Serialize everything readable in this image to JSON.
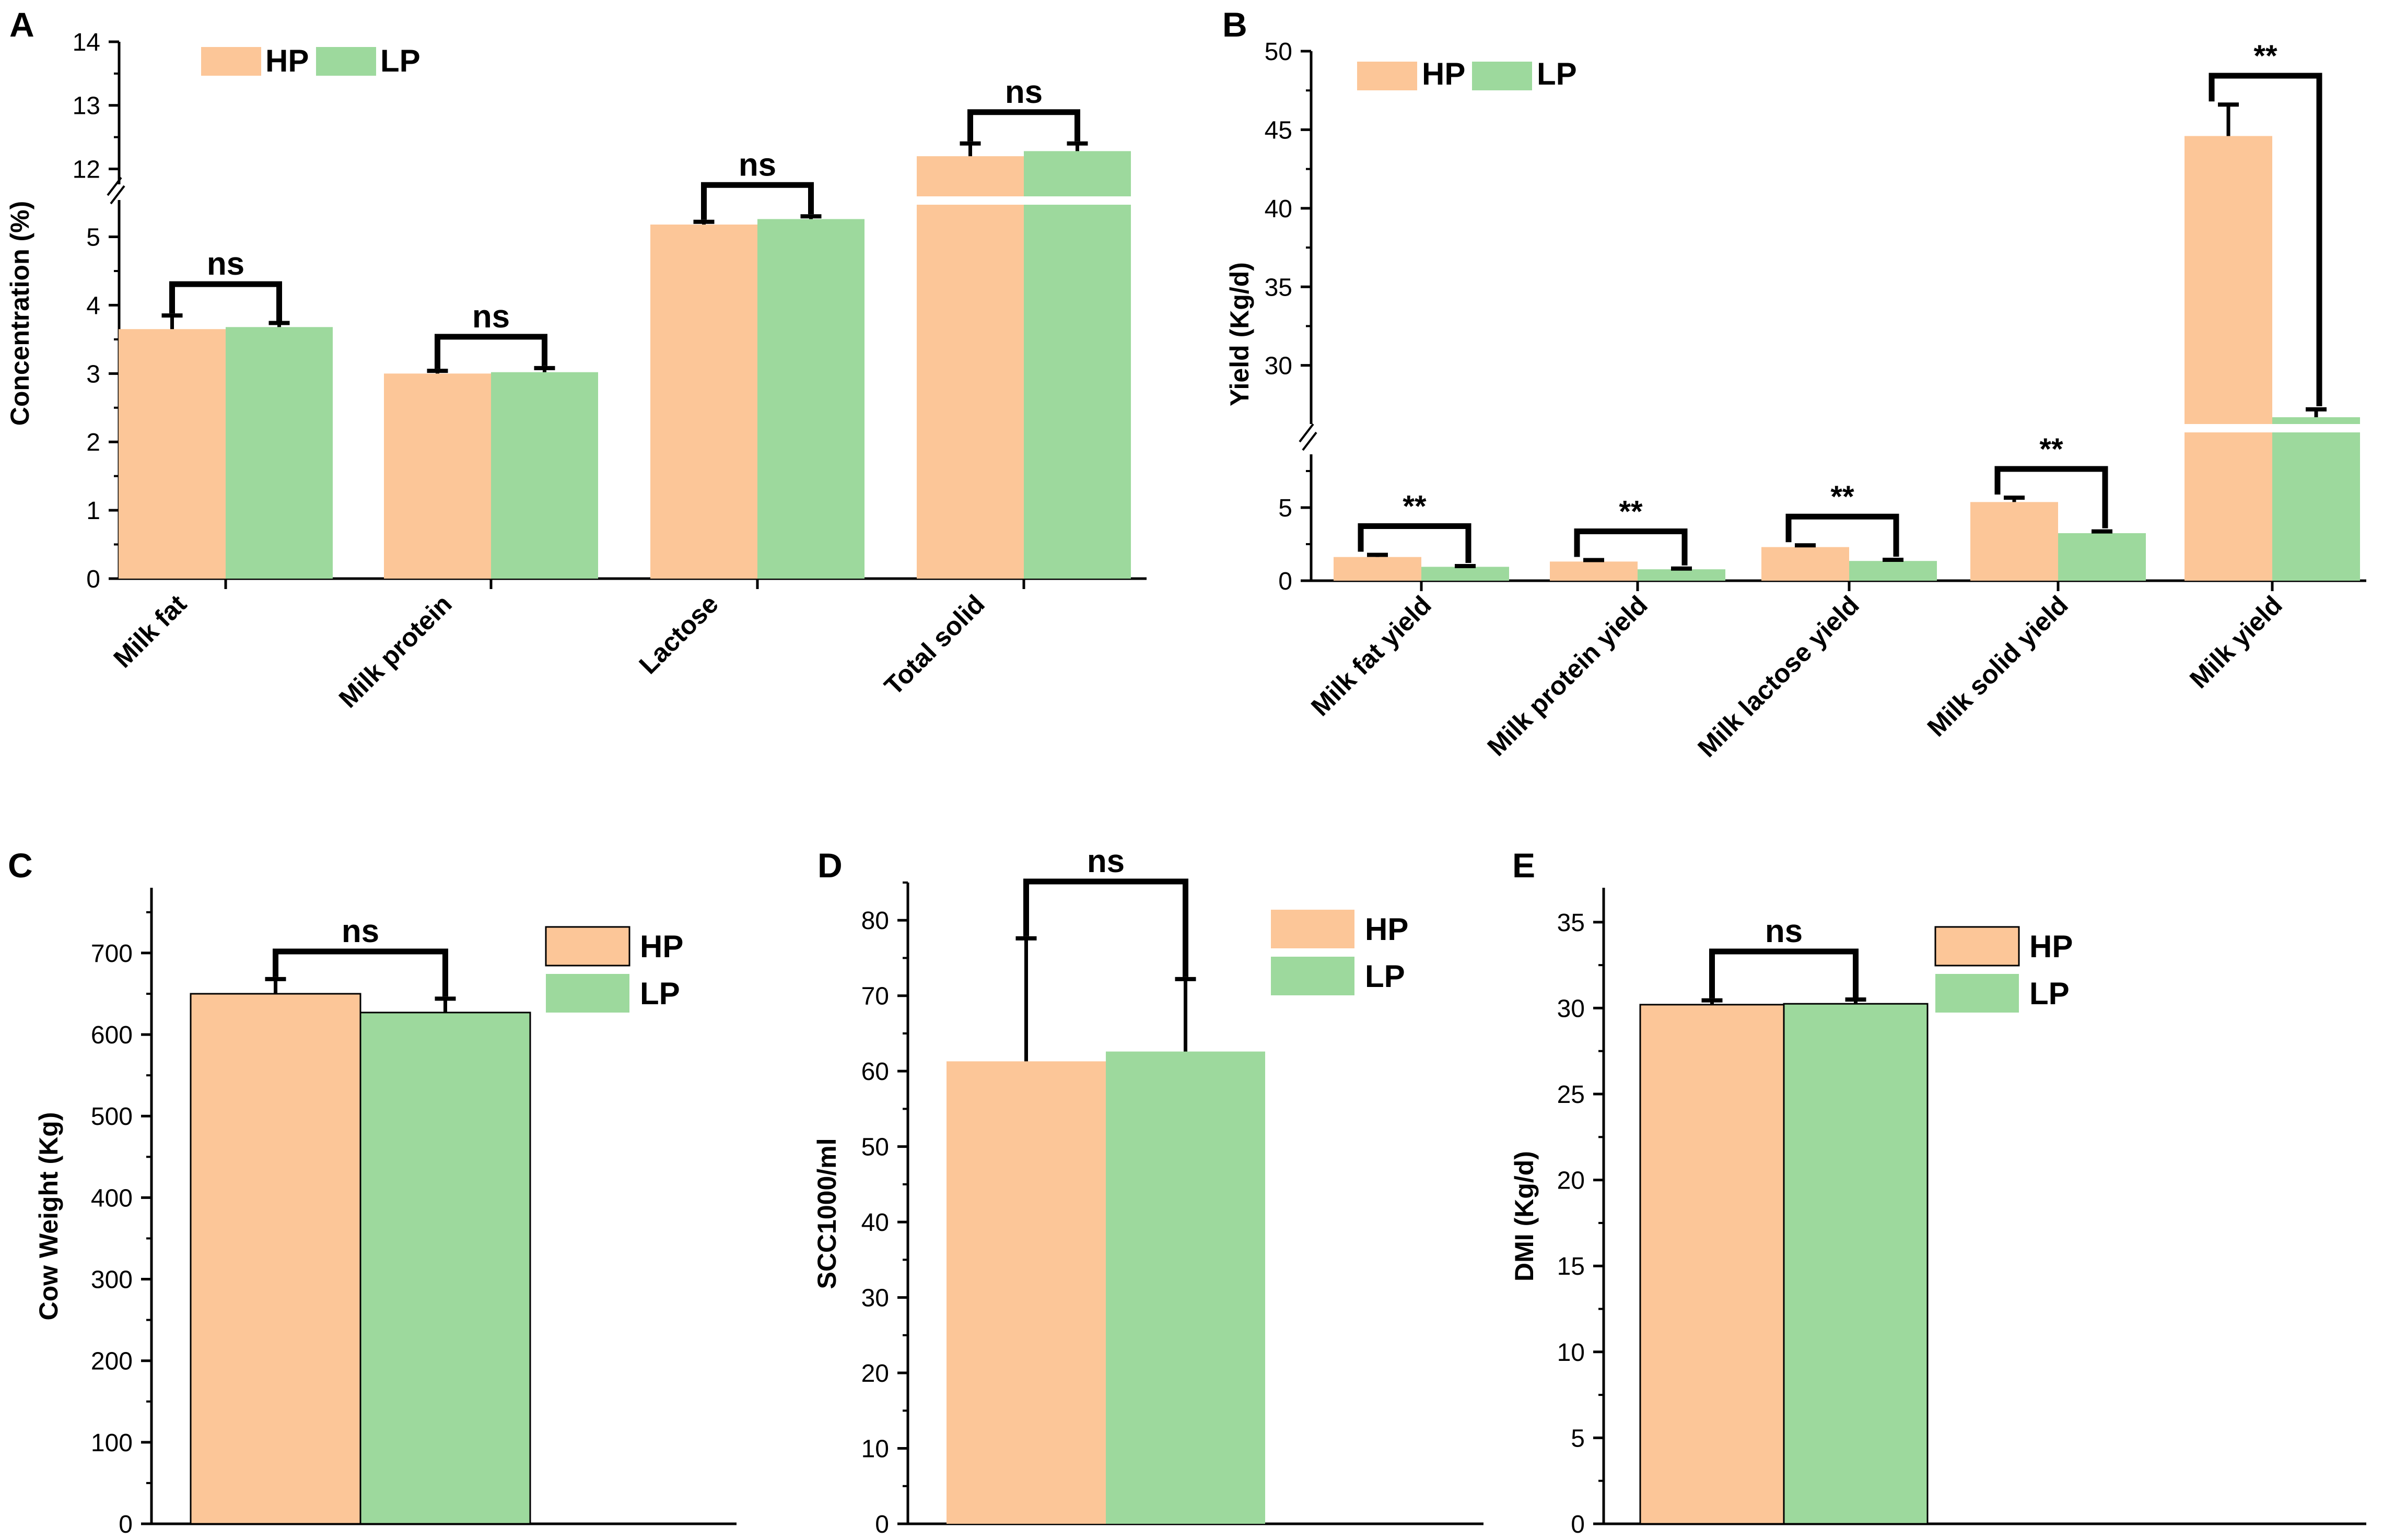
{
  "colors": {
    "HP": "#FCC698",
    "LP": "#9DD99D",
    "axis": "#000000"
  },
  "chart_data": [
    {
      "panel": "A",
      "type": "bar",
      "ylabel": "Concentration (%)",
      "xlabel": "",
      "axis_break": true,
      "lower_range": [
        0,
        5.6
      ],
      "upper_range": [
        11.7,
        14
      ],
      "lower_ticks": [
        "0",
        "1",
        "2",
        "3",
        "4",
        "5"
      ],
      "upper_ticks": [
        "12",
        "13",
        "14"
      ],
      "legend": [
        "HP",
        "LP"
      ],
      "legend_position": "top-left",
      "categories": [
        "Milk fat",
        "Milk protein",
        "Lactose",
        "Total solid"
      ],
      "series": [
        {
          "name": "HP",
          "values": [
            3.65,
            3.0,
            5.18,
            12.2
          ],
          "errors": [
            0.2,
            0.04,
            0.04,
            0.2
          ]
        },
        {
          "name": "LP",
          "values": [
            3.68,
            3.02,
            5.26,
            12.28
          ],
          "errors": [
            0.06,
            0.06,
            0.04,
            0.12
          ]
        }
      ],
      "significance": [
        "ns",
        "ns",
        "ns",
        "ns"
      ]
    },
    {
      "panel": "B",
      "type": "bar",
      "ylabel": "Yield (Kg/d)",
      "xlabel": "",
      "axis_break": true,
      "lower_range": [
        0,
        9
      ],
      "upper_range": [
        26,
        50
      ],
      "lower_ticks": [
        "0",
        "5"
      ],
      "upper_ticks": [
        "30",
        "35",
        "40",
        "45",
        "50"
      ],
      "legend": [
        "HP",
        "LP"
      ],
      "legend_position": "top-left",
      "categories": [
        "Milk fat yield",
        "Milk protein yield",
        "Milk lactose yield",
        "Milk solid yield",
        "Milk yield"
      ],
      "series": [
        {
          "name": "HP",
          "values": [
            1.62,
            1.31,
            2.3,
            5.38,
            44.6
          ],
          "errors": [
            0.15,
            0.1,
            0.12,
            0.3,
            2.0
          ]
        },
        {
          "name": "LP",
          "values": [
            0.95,
            0.78,
            1.35,
            3.25,
            26.7
          ],
          "errors": [
            0.05,
            0.05,
            0.08,
            0.12,
            0.5
          ]
        }
      ],
      "significance": [
        "**",
        "**",
        "**",
        "**",
        "**"
      ]
    },
    {
      "panel": "C",
      "type": "bar",
      "ylabel": "Cow Weight (Kg)",
      "ylim": [
        0,
        780
      ],
      "ticks": [
        "0",
        "100",
        "200",
        "300",
        "400",
        "500",
        "600",
        "700"
      ],
      "legend": [
        "HP",
        "LP"
      ],
      "legend_position": "top-right",
      "series": [
        {
          "name": "HP",
          "value": 650,
          "error": 18
        },
        {
          "name": "LP",
          "value": 627,
          "error": 17
        }
      ],
      "significance": "ns"
    },
    {
      "panel": "D",
      "type": "bar",
      "ylabel": "SCC1000/ml",
      "ylim": [
        0,
        85
      ],
      "ticks": [
        "0",
        "10",
        "20",
        "30",
        "40",
        "50",
        "60",
        "70",
        "80"
      ],
      "legend": [
        "HP",
        "LP"
      ],
      "legend_position": "top-right",
      "series": [
        {
          "name": "HP",
          "value": 61.3,
          "error": 16.3
        },
        {
          "name": "LP",
          "value": 62.6,
          "error": 9.6
        }
      ],
      "significance": "ns"
    },
    {
      "panel": "E",
      "type": "bar",
      "ylabel": "DMI (Kg/d)",
      "ylim": [
        0,
        37
      ],
      "ticks": [
        "0",
        "5",
        "10",
        "15",
        "20",
        "25",
        "30",
        "35"
      ],
      "legend": [
        "HP",
        "LP"
      ],
      "legend_position": "top-right",
      "series": [
        {
          "name": "HP",
          "value": 30.2,
          "error": 0.25
        },
        {
          "name": "LP",
          "value": 30.25,
          "error": 0.25
        }
      ],
      "significance": "ns"
    }
  ]
}
